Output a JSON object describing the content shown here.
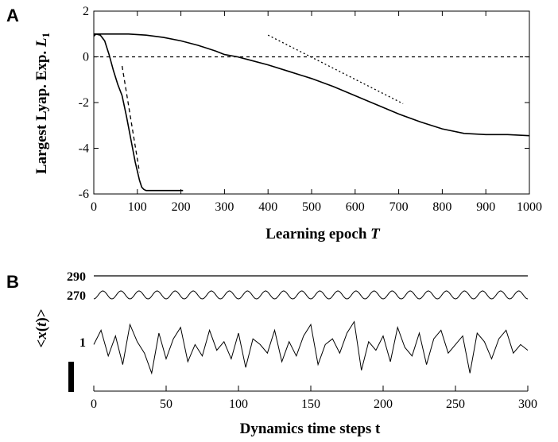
{
  "panel_a_label": "A",
  "panel_b_label": "B",
  "chart_data": [
    {
      "type": "line",
      "panel": "A",
      "xlabel": "Learning epoch T",
      "ylabel": "Largest Lyap. Exp. L1",
      "xlim": [
        0,
        1000
      ],
      "ylim": [
        -6,
        2
      ],
      "xticks": [
        0,
        100,
        200,
        300,
        400,
        500,
        600,
        700,
        800,
        900,
        1000
      ],
      "yticks": [
        2,
        0,
        -2,
        -4,
        -6
      ],
      "series": [
        {
          "style": "solid",
          "x": [
            0,
            5,
            15,
            25,
            35,
            45,
            55,
            65,
            75,
            85,
            95,
            105,
            110,
            115,
            120,
            140,
            160,
            180,
            205
          ],
          "y": [
            0.9,
            1.0,
            0.95,
            0.7,
            0.1,
            -0.6,
            -1.2,
            -1.7,
            -2.6,
            -3.6,
            -4.6,
            -5.4,
            -5.7,
            -5.8,
            -5.85,
            -5.85,
            -5.85,
            -5.85,
            -5.85
          ]
        },
        {
          "style": "solid",
          "x": [
            0,
            15,
            40,
            80,
            120,
            160,
            200,
            240,
            280,
            300,
            330,
            360,
            400,
            450,
            500,
            550,
            600,
            650,
            700,
            750,
            800,
            850,
            900,
            950,
            1000
          ],
          "y": [
            1.0,
            1.0,
            1.0,
            1.0,
            0.95,
            0.85,
            0.7,
            0.5,
            0.25,
            0.1,
            0.0,
            -0.15,
            -0.35,
            -0.65,
            -0.95,
            -1.3,
            -1.7,
            -2.1,
            -2.5,
            -2.85,
            -3.15,
            -3.35,
            -3.4,
            -3.4,
            -3.45
          ]
        },
        {
          "style": "dashed",
          "x": [
            65,
            105
          ],
          "y": [
            -0.4,
            -5.05
          ]
        },
        {
          "style": "dotted",
          "x": [
            400,
            710
          ],
          "y": [
            0.95,
            -2.05
          ]
        },
        {
          "style": "dashed-thin",
          "x": [
            0,
            1000
          ],
          "y": [
            0,
            0
          ]
        }
      ]
    },
    {
      "type": "line",
      "panel": "B",
      "xlabel": "Dynamics time steps t",
      "ylabel": "<x(t)>",
      "xlim": [
        0,
        300
      ],
      "xticks": [
        0,
        50,
        100,
        150,
        200,
        250,
        300
      ],
      "trace_labels": [
        "290",
        "270",
        "1"
      ],
      "series": [
        {
          "name": "290",
          "kind": "constant",
          "x": [
            0,
            300
          ],
          "y": [
            0,
            0
          ]
        },
        {
          "name": "270",
          "kind": "periodic",
          "period": 12.5,
          "amplitude": 1
        },
        {
          "name": "1",
          "kind": "chaotic",
          "x": [
            0,
            5,
            10,
            15,
            20,
            25,
            30,
            35,
            40,
            45,
            50,
            55,
            60,
            65,
            70,
            75,
            80,
            85,
            90,
            95,
            100,
            105,
            110,
            115,
            120,
            125,
            130,
            135,
            140,
            145,
            150,
            155,
            160,
            165,
            170,
            175,
            180,
            185,
            190,
            195,
            200,
            205,
            210,
            215,
            220,
            225,
            230,
            235,
            240,
            245,
            250,
            255,
            260,
            265,
            270,
            275,
            280,
            285,
            290,
            295,
            300
          ],
          "y": [
            0.1,
            0.6,
            -0.3,
            0.4,
            -0.6,
            0.8,
            0.2,
            -0.2,
            -0.9,
            0.5,
            -0.4,
            0.3,
            0.7,
            -0.5,
            0.1,
            -0.3,
            0.6,
            -0.1,
            0.2,
            -0.4,
            0.5,
            -0.7,
            0.3,
            0.1,
            -0.2,
            0.6,
            -0.5,
            0.2,
            -0.3,
            0.4,
            0.8,
            -0.6,
            0.1,
            0.3,
            -0.2,
            0.5,
            0.9,
            -0.8,
            0.2,
            -0.1,
            0.4,
            -0.5,
            0.7,
            0.0,
            -0.3,
            0.5,
            -0.6,
            0.3,
            0.6,
            -0.2,
            0.1,
            0.4,
            -0.9,
            0.5,
            0.2,
            -0.4,
            0.3,
            0.6,
            -0.2,
            0.1,
            -0.1
          ]
        }
      ]
    }
  ]
}
